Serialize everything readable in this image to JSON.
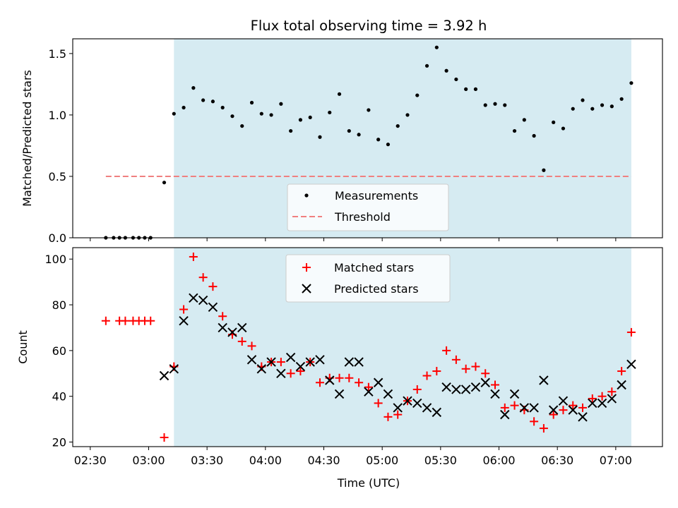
{
  "chart_data": [
    {
      "type": "scatter",
      "title": "Flux total observing time = 3.92 h",
      "xlabel": "",
      "ylabel": "Matched/Predicted stars",
      "ylim": [
        0,
        1.62
      ],
      "yticks": [
        "0.0",
        "0.5",
        "1.0",
        "1.5"
      ],
      "ytick_values": [
        0,
        0.5,
        1.0,
        1.5
      ],
      "xlim": [
        "02:21",
        "07:24"
      ],
      "legend_position": "bottom-center",
      "shaded_region": {
        "x_start": "03:13",
        "x_end": "07:08",
        "color": "#add8e6"
      },
      "series": [
        {
          "name": "Measurements",
          "marker": "dot",
          "color": "#000000",
          "x": [
            "02:38",
            "02:42",
            "02:45",
            "02:48",
            "02:52",
            "02:55",
            "02:58",
            "03:01",
            "03:08",
            "03:13",
            "03:18",
            "03:23",
            "03:28",
            "03:33",
            "03:38",
            "03:43",
            "03:48",
            "03:53",
            "03:58",
            "04:03",
            "04:08",
            "04:13",
            "04:18",
            "04:23",
            "04:28",
            "04:33",
            "04:38",
            "04:43",
            "04:48",
            "04:53",
            "04:58",
            "05:03",
            "05:08",
            "05:13",
            "05:18",
            "05:23",
            "05:28",
            "05:33",
            "05:38",
            "05:43",
            "05:48",
            "05:53",
            "05:58",
            "06:03",
            "06:08",
            "06:13",
            "06:18",
            "06:23",
            "06:28",
            "06:33",
            "06:38",
            "06:43",
            "06:48",
            "06:53",
            "06:58",
            "07:03",
            "07:08"
          ],
          "values": [
            0,
            0,
            0,
            0,
            0,
            0,
            0,
            0,
            0.45,
            1.01,
            1.06,
            1.22,
            1.12,
            1.11,
            1.06,
            0.99,
            0.91,
            1.1,
            1.01,
            1.0,
            1.09,
            0.87,
            0.96,
            0.98,
            0.82,
            1.02,
            1.17,
            0.87,
            0.84,
            1.04,
            0.8,
            0.76,
            0.91,
            1.0,
            1.16,
            1.4,
            1.55,
            1.36,
            1.29,
            1.21,
            1.21,
            1.08,
            1.09,
            1.08,
            0.87,
            0.96,
            0.83,
            0.55,
            0.94,
            0.89,
            1.05,
            1.12,
            1.05,
            1.08,
            1.07,
            1.13,
            1.26
          ]
        },
        {
          "name": "Threshold",
          "style": "dashed",
          "color": "#f08080",
          "x": [
            "02:38",
            "07:08"
          ],
          "values": [
            0.5,
            0.5
          ]
        }
      ]
    },
    {
      "type": "scatter",
      "title": "",
      "xlabel": "Time (UTC)",
      "ylabel": "Count",
      "ylim": [
        18,
        105
      ],
      "yticks": [
        "20",
        "40",
        "60",
        "80",
        "100"
      ],
      "ytick_values": [
        20,
        40,
        60,
        80,
        100
      ],
      "xlim": [
        "02:21",
        "07:24"
      ],
      "xticks": [
        "02:30",
        "03:00",
        "03:30",
        "04:00",
        "04:30",
        "05:00",
        "05:30",
        "06:00",
        "06:30",
        "07:00"
      ],
      "legend_position": "top-center",
      "shaded_region": {
        "x_start": "03:13",
        "x_end": "07:08",
        "color": "#add8e6"
      },
      "series": [
        {
          "name": "Matched stars",
          "marker": "plus",
          "color": "#ff0000",
          "x": [
            "02:38",
            "02:45",
            "02:48",
            "02:52",
            "02:55",
            "02:58",
            "03:01",
            "03:08",
            "03:13",
            "03:18",
            "03:23",
            "03:28",
            "03:33",
            "03:38",
            "03:43",
            "03:48",
            "03:53",
            "03:58",
            "04:03",
            "04:08",
            "04:13",
            "04:18",
            "04:23",
            "04:28",
            "04:33",
            "04:38",
            "04:43",
            "04:48",
            "04:53",
            "04:58",
            "05:03",
            "05:08",
            "05:13",
            "05:18",
            "05:23",
            "05:28",
            "05:33",
            "05:38",
            "05:43",
            "05:48",
            "05:53",
            "05:58",
            "06:03",
            "06:08",
            "06:13",
            "06:18",
            "06:23",
            "06:28",
            "06:33",
            "06:38",
            "06:43",
            "06:48",
            "06:53",
            "06:58",
            "07:03",
            "07:08"
          ],
          "values": [
            73,
            73,
            73,
            73,
            73,
            73,
            73,
            22,
            53,
            78,
            101,
            92,
            88,
            75,
            67,
            64,
            62,
            53,
            55,
            55,
            50,
            51,
            55,
            46,
            48,
            48,
            48,
            46,
            44,
            37,
            31,
            32,
            38,
            43,
            49,
            51,
            60,
            56,
            52,
            53,
            50,
            45,
            35,
            36,
            34,
            29,
            26,
            32,
            34,
            36,
            35,
            39,
            40,
            42,
            51,
            68
          ]
        },
        {
          "name": "Predicted stars",
          "marker": "x",
          "color": "#000000",
          "x": [
            "03:08",
            "03:13",
            "03:18",
            "03:23",
            "03:28",
            "03:33",
            "03:38",
            "03:43",
            "03:48",
            "03:53",
            "03:58",
            "04:03",
            "04:08",
            "04:13",
            "04:18",
            "04:23",
            "04:28",
            "04:33",
            "04:38",
            "04:43",
            "04:48",
            "04:53",
            "04:58",
            "05:03",
            "05:08",
            "05:13",
            "05:18",
            "05:23",
            "05:28",
            "05:33",
            "05:38",
            "05:43",
            "05:48",
            "05:53",
            "05:58",
            "06:03",
            "06:08",
            "06:13",
            "06:18",
            "06:23",
            "06:28",
            "06:33",
            "06:38",
            "06:43",
            "06:48",
            "06:53",
            "06:58",
            "07:03",
            "07:08"
          ],
          "values": [
            49,
            52,
            73,
            83,
            82,
            79,
            70,
            68,
            70,
            56,
            52,
            55,
            50,
            57,
            53,
            55,
            56,
            47,
            41,
            55,
            55,
            42,
            46,
            41,
            35,
            38,
            37,
            35,
            33,
            44,
            43,
            43,
            44,
            46,
            41,
            32,
            41,
            35,
            35,
            47,
            34,
            38,
            34,
            31,
            37,
            37,
            39,
            45,
            54
          ]
        }
      ]
    }
  ]
}
